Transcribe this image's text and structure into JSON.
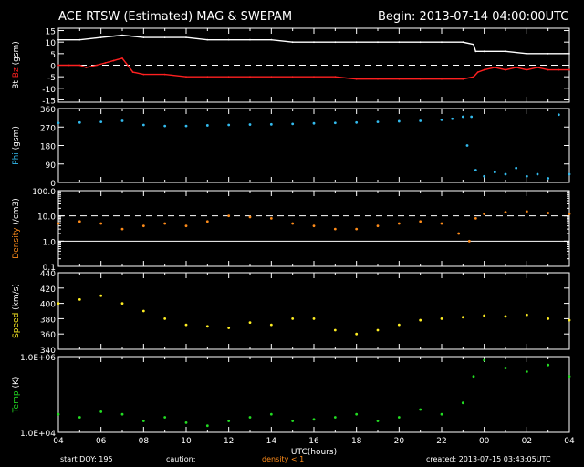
{
  "header": {
    "title": "ACE RTSW (Estimated) MAG & SWEPAM",
    "begin": "Begin: 2013-07-14 04:00:00UTC"
  },
  "footer": {
    "start_doy": "start DOY: 195",
    "caution": "caution:",
    "density_note": "density < 1",
    "created": "created: 2013-07-15 03:43:05UTC"
  },
  "colors": {
    "bt": "#ffffff",
    "bz": "#ff2020",
    "phi": "#33bbee",
    "density": "#ff8c1a",
    "speed": "#ffee22",
    "temp": "#22dd22",
    "axes": "#ffffff",
    "background": "#000000"
  },
  "chart_data": [
    {
      "type": "line",
      "id": "mag",
      "ylabel_parts": [
        "Bt",
        "Bz",
        "(gsm)"
      ],
      "yticks": [
        "15",
        "10",
        "5",
        "0",
        "-5",
        "-10",
        "-15"
      ],
      "ylim": [
        -16,
        16
      ],
      "dashed_y": [
        0
      ],
      "series": [
        {
          "name": "Bt",
          "color": "#ffffff",
          "x": [
            0,
            1,
            2,
            3,
            4,
            5,
            6,
            7,
            8,
            9,
            10,
            11,
            12,
            13,
            14,
            15,
            16,
            17,
            18,
            19,
            19.5,
            19.6,
            20,
            21,
            22,
            23,
            24
          ],
          "y": [
            11,
            11,
            12,
            13,
            12,
            12,
            12,
            11,
            11,
            11,
            11,
            10,
            10,
            10,
            10,
            10,
            10,
            10,
            10,
            10,
            9,
            6,
            6,
            6,
            5,
            5,
            5
          ]
        },
        {
          "name": "Bz",
          "color": "#ff2020",
          "x": [
            0,
            0.5,
            1,
            1.3,
            1.8,
            2.2,
            2.6,
            3.0,
            3.5,
            4,
            5,
            6,
            7,
            8,
            9,
            10,
            11,
            12,
            13,
            14,
            15,
            16,
            17,
            18,
            19,
            19.5,
            19.7,
            20,
            20.5,
            21,
            21.5,
            22,
            22.5,
            23,
            23.5,
            24
          ],
          "y": [
            0,
            0,
            0,
            -1,
            0,
            1,
            2,
            3,
            -3,
            -4,
            -4,
            -5,
            -5,
            -5,
            -5,
            -5,
            -5,
            -5,
            -5,
            -6,
            -6,
            -6,
            -6,
            -6,
            -6,
            -5,
            -3,
            -2,
            -1,
            -2,
            -1,
            -2,
            -1,
            -2,
            -2,
            -2
          ]
        }
      ]
    },
    {
      "type": "scatter",
      "id": "phi",
      "ylabel_parts": [
        "Phi",
        "(gsm)"
      ],
      "yticks": [
        "360",
        "270",
        "180",
        "90",
        "0"
      ],
      "ylim": [
        0,
        360
      ],
      "series": [
        {
          "name": "Phi",
          "color": "#33bbee",
          "x": [
            0,
            1,
            2,
            3,
            4,
            5,
            6,
            7,
            8,
            9,
            10,
            11,
            12,
            13,
            14,
            15,
            16,
            17,
            18,
            18.5,
            19,
            19.2,
            19.4,
            19.6,
            20,
            20.5,
            21,
            21.5,
            22,
            22.5,
            23,
            23.5,
            24
          ],
          "y": [
            290,
            292,
            295,
            300,
            280,
            275,
            275,
            278,
            280,
            282,
            283,
            285,
            288,
            290,
            292,
            295,
            298,
            300,
            305,
            310,
            320,
            180,
            320,
            60,
            30,
            50,
            40,
            70,
            30,
            40,
            20,
            330,
            40
          ]
        }
      ]
    },
    {
      "type": "scatter",
      "id": "density",
      "ylabel_parts": [
        "Density",
        "(/cm3)"
      ],
      "yticks": [
        "100.0",
        "10.0",
        "1.0",
        "0.1"
      ],
      "ylim": [
        0.1,
        100
      ],
      "scale": "log",
      "dashed_y": [
        10
      ],
      "solid_y": [
        1
      ],
      "series": [
        {
          "name": "Density",
          "color": "#ff8c1a",
          "x": [
            0,
            1,
            2,
            3,
            4,
            5,
            6,
            7,
            8,
            9,
            10,
            11,
            12,
            13,
            14,
            15,
            16,
            17,
            18,
            18.8,
            19.3,
            19.6,
            20,
            21,
            22,
            23,
            24
          ],
          "y": [
            5,
            6,
            5,
            3,
            4,
            5,
            4,
            6,
            10,
            9,
            8,
            5,
            4,
            3,
            3,
            4,
            5,
            6,
            5,
            2,
            1,
            8,
            12,
            14,
            15,
            13,
            12
          ]
        }
      ]
    },
    {
      "type": "scatter",
      "id": "speed",
      "ylabel_parts": [
        "Speed",
        "(km/s)"
      ],
      "yticks": [
        "440",
        "420",
        "400",
        "380",
        "360",
        "340"
      ],
      "ylim": [
        340,
        440
      ],
      "series": [
        {
          "name": "Speed",
          "color": "#ffee22",
          "x": [
            0,
            1,
            2,
            3,
            4,
            5,
            6,
            7,
            8,
            9,
            10,
            11,
            12,
            13,
            14,
            15,
            16,
            17,
            18,
            19,
            20,
            21,
            22,
            23,
            24
          ],
          "y": [
            400,
            405,
            410,
            400,
            390,
            380,
            372,
            370,
            368,
            375,
            372,
            380,
            380,
            365,
            360,
            365,
            372,
            378,
            380,
            382,
            384,
            383,
            385,
            380,
            378
          ]
        }
      ]
    },
    {
      "type": "scatter",
      "id": "temp",
      "ylabel_parts": [
        "Temp",
        "(K)"
      ],
      "yticks": [
        "1.0E+06",
        "1.0E+04"
      ],
      "ylim": [
        10000,
        1000000
      ],
      "scale": "log",
      "series": [
        {
          "name": "Temp",
          "color": "#22dd22",
          "x": [
            0,
            1,
            2,
            3,
            4,
            5,
            6,
            7,
            8,
            9,
            10,
            11,
            12,
            13,
            14,
            15,
            16,
            17,
            18,
            19,
            19.5,
            20,
            21,
            22,
            23,
            24
          ],
          "y": [
            30000,
            25000,
            35000,
            30000,
            20000,
            25000,
            18000,
            15000,
            20000,
            25000,
            30000,
            20000,
            22000,
            25000,
            30000,
            20000,
            25000,
            40000,
            30000,
            60000,
            300000,
            800000,
            500000,
            400000,
            600000,
            300000
          ]
        }
      ]
    }
  ],
  "x_axis": {
    "ticks": [
      "04",
      "06",
      "08",
      "10",
      "12",
      "14",
      "16",
      "18",
      "20",
      "22",
      "00",
      "02",
      "04"
    ],
    "xlabel": "UTC(hours)"
  }
}
